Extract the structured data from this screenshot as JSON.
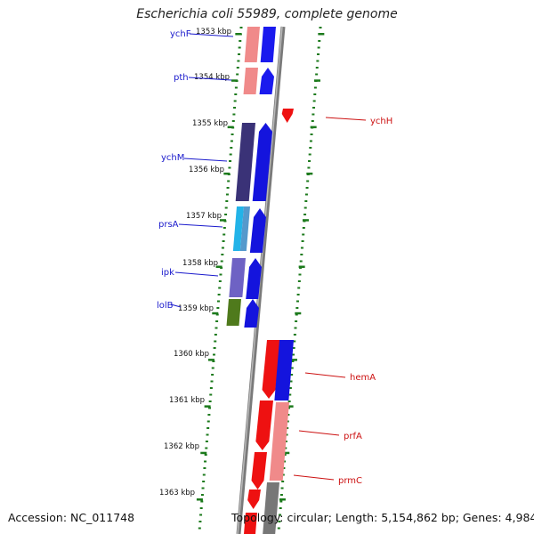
{
  "title": "Escherichia coli 55989, complete genome",
  "accession": "Accession: NC_011748",
  "summary": "Topology: circular; Length: 5,154,862 bp; Genes: 4,984",
  "ticks": [
    {
      "label": "1353 kbp",
      "kbp": 1353
    },
    {
      "label": "1354 kbp",
      "kbp": 1354
    },
    {
      "label": "1355 kbp",
      "kbp": 1355
    },
    {
      "label": "1356 kbp",
      "kbp": 1356
    },
    {
      "label": "1357 kbp",
      "kbp": 1357
    },
    {
      "label": "1358 kbp",
      "kbp": 1358
    },
    {
      "label": "1359 kbp",
      "kbp": 1359
    },
    {
      "label": "1360 kbp",
      "kbp": 1360
    },
    {
      "label": "1361 kbp",
      "kbp": 1361
    },
    {
      "label": "1362 kbp",
      "kbp": 1362
    },
    {
      "label": "1363 kbp",
      "kbp": 1363
    }
  ],
  "genes_left": [
    {
      "label": "ychF",
      "color": "#1a1acc"
    },
    {
      "label": "pth",
      "color": "#1a1acc"
    },
    {
      "label": "ychM",
      "color": "#1a1acc"
    },
    {
      "label": "prsA",
      "color": "#1a1acc"
    },
    {
      "label": "ipk",
      "color": "#1a1acc"
    },
    {
      "label": "lolB",
      "color": "#1a1acc"
    }
  ],
  "genes_right": [
    {
      "label": "ychH",
      "color": "#cc1111"
    },
    {
      "label": "hemA",
      "color": "#cc1111"
    },
    {
      "label": "prfA",
      "color": "#cc1111"
    },
    {
      "label": "prmC",
      "color": "#cc1111"
    }
  ]
}
